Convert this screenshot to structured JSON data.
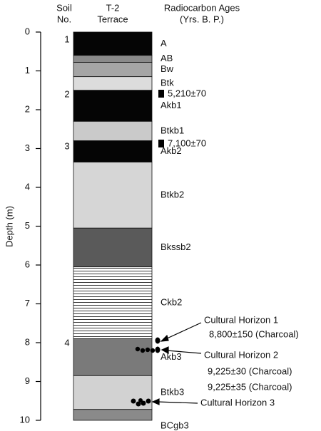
{
  "header": {
    "soil_no": [
      "Soil",
      "No."
    ],
    "terrace": [
      "T-2",
      "Terrace"
    ],
    "ages": [
      "Radiocarbon Ages",
      "(Yrs. B. P.)"
    ]
  },
  "axis": {
    "label": "Depth (m)",
    "lim": [
      0,
      10
    ],
    "ticks": [
      0,
      1,
      2,
      3,
      4,
      5,
      6,
      7,
      8,
      9,
      10
    ]
  },
  "layers": [
    {
      "label": "A",
      "top": 0,
      "bottom": 0.6
    },
    {
      "label": "AB",
      "top": 0.6,
      "bottom": 0.78
    },
    {
      "label": "Bw",
      "top": 0.78,
      "bottom": 1.15
    },
    {
      "label": "Btk",
      "top": 1.15,
      "bottom": 1.5
    },
    {
      "label": "Akb1",
      "top": 1.5,
      "bottom": 2.3
    },
    {
      "label": "Btkb1",
      "top": 2.3,
      "bottom": 2.8
    },
    {
      "label": "Akb2",
      "top": 2.8,
      "bottom": 3.35
    },
    {
      "label": "Btkb2",
      "top": 3.35,
      "bottom": 5.05
    },
    {
      "label": "Bkssb2",
      "top": 5.05,
      "bottom": 6.05
    },
    {
      "label": "Ckb2",
      "top": 6.05,
      "bottom": 7.9
    },
    {
      "label": "Akb3",
      "top": 7.9,
      "bottom": 8.85
    },
    {
      "label": "Btkb3",
      "top": 8.85,
      "bottom": 9.72
    },
    {
      "label": "BCgb3",
      "top": 9.72,
      "bottom": 10
    }
  ],
  "soils": [
    1,
    2,
    3,
    4
  ],
  "ages": [
    "5,210±70",
    "7,100±70"
  ],
  "cultural": [
    {
      "label": "Cultural Horizon 1",
      "dates": [
        "8,800±150 (Charcoal)"
      ]
    },
    {
      "label": "Cultural Horizon 2",
      "dates": [
        "9,225±30 (Charcoal)",
        "9,225±35 (Charcoal)"
      ]
    },
    {
      "label": "Cultural Horizon 3",
      "dates": []
    }
  ]
}
